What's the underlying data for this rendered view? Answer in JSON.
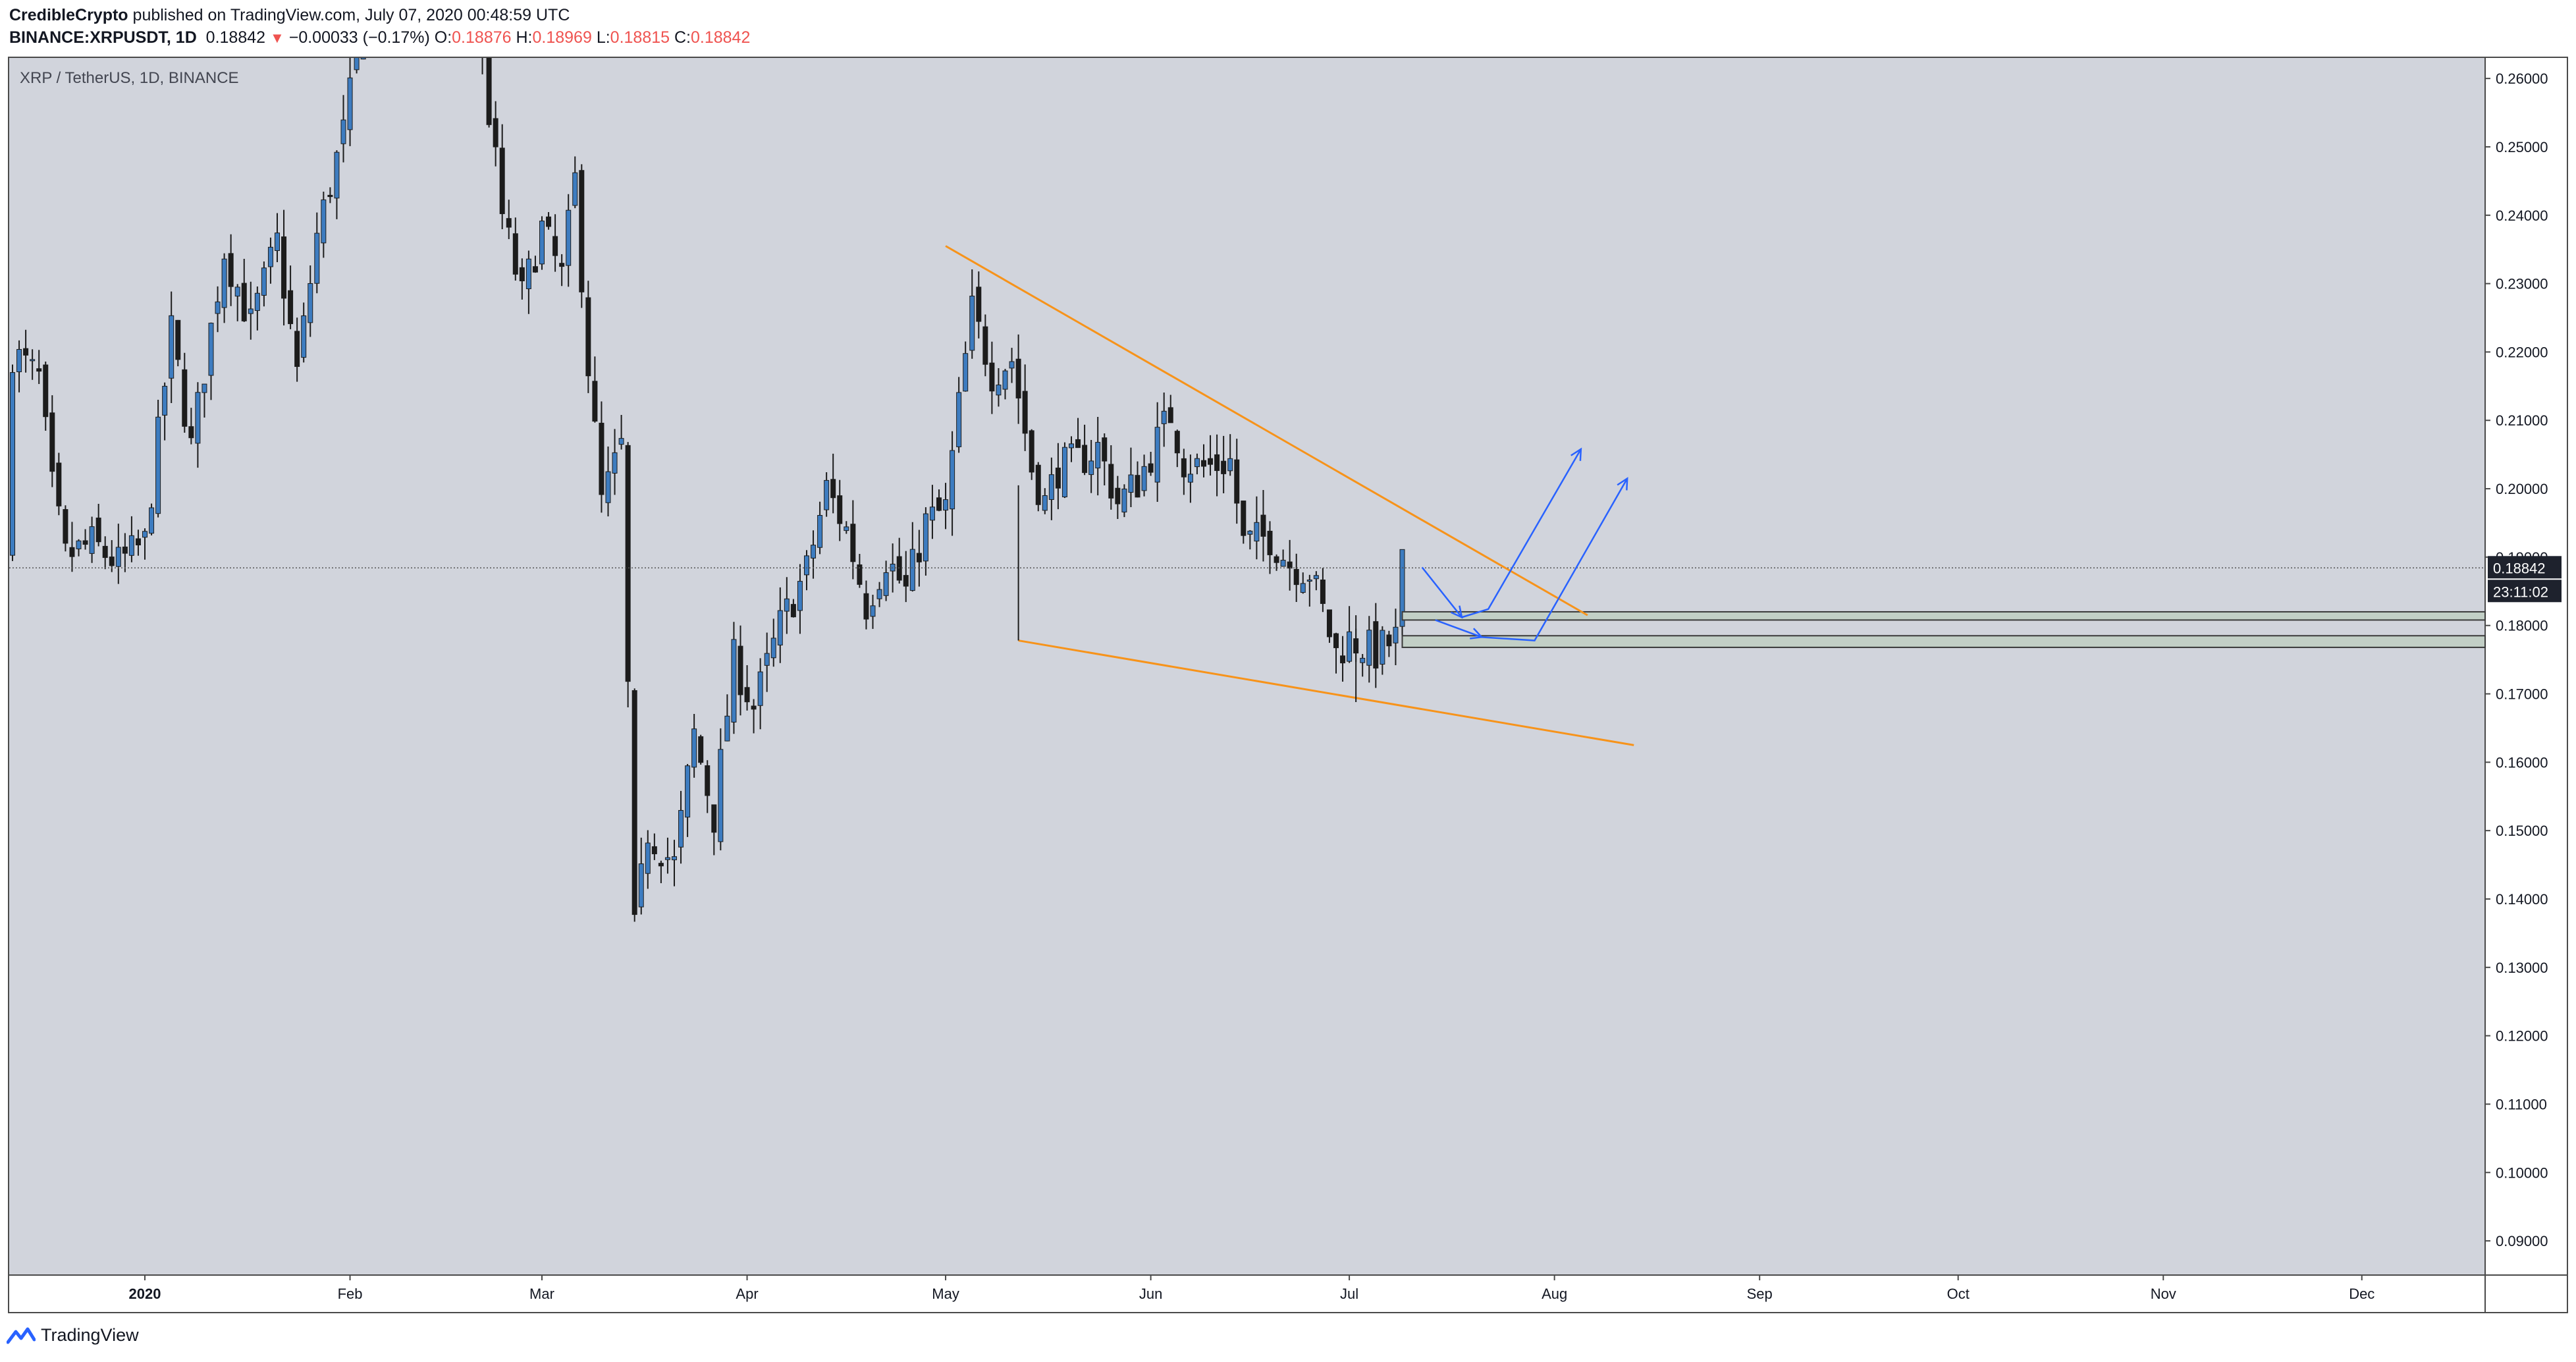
{
  "header": {
    "author": "CredibleCrypto",
    "published_text": " published on TradingView.com, July 07, 2020 00:48:59 UTC",
    "symbol": "BINANCE:XRPUSDT, 1D",
    "price": "0.18842",
    "change_arrow": "▼",
    "change": "−0.00033 (−0.17%)",
    "o_label": "O:",
    "o_value": "0.18876",
    "h_label": "H:",
    "h_value": "0.18969",
    "l_label": "L:",
    "l_value": "0.18815",
    "c_label": "C:",
    "c_value": "0.18842"
  },
  "footer": {
    "brand": "TradingView",
    "logo_icon": "tradingview-logo-icon"
  },
  "colors": {
    "background": "#d1d4dc",
    "candle_up": "#3d7cc0",
    "candle_down": "#1c1c1c",
    "wedge": "#f7931a",
    "arrows": "#2962ff",
    "zone_fill": "#c2cfc6",
    "price_label_bg": "#1e222d"
  },
  "chart_data": {
    "type": "candlestick",
    "title": "XRP / TetherUS, 1D, BINANCE",
    "ylim": [
      0.085,
      0.263
    ],
    "y_ticks": [
      "0.26000",
      "0.25000",
      "0.24000",
      "0.23000",
      "0.22000",
      "0.21000",
      "0.20000",
      "0.19000",
      "0.18000",
      "0.17000",
      "0.16000",
      "0.15000",
      "0.14000",
      "0.13000",
      "0.12000",
      "0.11000",
      "0.10000",
      "0.09000"
    ],
    "x_labels": [
      {
        "day": 0,
        "label": "2020"
      },
      {
        "day": 31,
        "label": "Feb"
      },
      {
        "day": 60,
        "label": "Mar"
      },
      {
        "day": 91,
        "label": "Apr"
      },
      {
        "day": 121,
        "label": "May"
      },
      {
        "day": 152,
        "label": "Jun"
      },
      {
        "day": 182,
        "label": "Jul"
      },
      {
        "day": 213,
        "label": "Aug"
      },
      {
        "day": 244,
        "label": "Sep"
      },
      {
        "day": 274,
        "label": "Oct"
      },
      {
        "day": 305,
        "label": "Nov"
      },
      {
        "day": 335,
        "label": "Dec"
      }
    ],
    "last_price": "0.18842",
    "countdown": "23:11:02",
    "anchors": [
      {
        "day": -20,
        "close": 0.22
      },
      {
        "day": -16,
        "close": 0.216
      },
      {
        "day": -14,
        "close": 0.2
      },
      {
        "day": -12,
        "close": 0.19
      },
      {
        "day": -8,
        "close": 0.192
      },
      {
        "day": -4,
        "close": 0.189
      },
      {
        "day": 0,
        "close": 0.192
      },
      {
        "day": 4,
        "close": 0.223
      },
      {
        "day": 7,
        "close": 0.206
      },
      {
        "day": 12,
        "close": 0.235
      },
      {
        "day": 16,
        "close": 0.224
      },
      {
        "day": 20,
        "close": 0.236
      },
      {
        "day": 23,
        "close": 0.217
      },
      {
        "day": 26,
        "close": 0.237
      },
      {
        "day": 30,
        "close": 0.252
      },
      {
        "day": 33,
        "close": 0.268
      },
      {
        "day": 37,
        "close": 0.28
      },
      {
        "day": 43,
        "close": 0.29
      },
      {
        "day": 50,
        "close": 0.27
      },
      {
        "day": 54,
        "close": 0.24
      },
      {
        "day": 57,
        "close": 0.228
      },
      {
        "day": 60,
        "close": 0.238
      },
      {
        "day": 63,
        "close": 0.231
      },
      {
        "day": 65,
        "close": 0.245
      },
      {
        "day": 67,
        "close": 0.218
      },
      {
        "day": 69,
        "close": 0.198
      },
      {
        "day": 72,
        "close": 0.206
      },
      {
        "day": 74,
        "close": 0.135
      },
      {
        "day": 76,
        "close": 0.15
      },
      {
        "day": 80,
        "close": 0.145
      },
      {
        "day": 83,
        "close": 0.164
      },
      {
        "day": 86,
        "close": 0.152
      },
      {
        "day": 89,
        "close": 0.175
      },
      {
        "day": 92,
        "close": 0.168
      },
      {
        "day": 96,
        "close": 0.18
      },
      {
        "day": 100,
        "close": 0.188
      },
      {
        "day": 103,
        "close": 0.2
      },
      {
        "day": 106,
        "close": 0.194
      },
      {
        "day": 109,
        "close": 0.183
      },
      {
        "day": 112,
        "close": 0.19
      },
      {
        "day": 115,
        "close": 0.185
      },
      {
        "day": 118,
        "close": 0.195
      },
      {
        "day": 121,
        "close": 0.197
      },
      {
        "day": 123,
        "close": 0.212
      },
      {
        "day": 125,
        "close": 0.226
      },
      {
        "day": 128,
        "close": 0.217
      },
      {
        "day": 131,
        "close": 0.219
      },
      {
        "day": 134,
        "close": 0.203
      },
      {
        "day": 136,
        "close": 0.198
      },
      {
        "day": 138,
        "close": 0.203
      },
      {
        "day": 141,
        "close": 0.204
      },
      {
        "day": 144,
        "close": 0.206
      },
      {
        "day": 147,
        "close": 0.198
      },
      {
        "day": 150,
        "close": 0.201
      },
      {
        "day": 153,
        "close": 0.207
      },
      {
        "day": 155,
        "close": 0.211
      },
      {
        "day": 157,
        "close": 0.204
      },
      {
        "day": 160,
        "close": 0.203
      },
      {
        "day": 164,
        "close": 0.204
      },
      {
        "day": 166,
        "close": 0.192
      },
      {
        "day": 170,
        "close": 0.193
      },
      {
        "day": 173,
        "close": 0.189
      },
      {
        "day": 176,
        "close": 0.188
      },
      {
        "day": 178,
        "close": 0.182
      },
      {
        "day": 180,
        "close": 0.176
      },
      {
        "day": 182,
        "close": 0.178
      },
      {
        "day": 186,
        "close": 0.176
      },
      {
        "day": 189,
        "close": 0.178
      },
      {
        "day": 190,
        "close": 0.189
      }
    ],
    "wedge_lines": [
      {
        "from": {
          "day": 121,
          "price": 0.2355
        },
        "to": {
          "day": 218,
          "price": 0.1815
        }
      },
      {
        "from": {
          "day": 132,
          "price": 0.1778
        },
        "to": {
          "day": 225,
          "price": 0.1625
        }
      }
    ],
    "wedge_ticks": [
      {
        "day": 132,
        "from": 0.1778,
        "to": 0.2005
      },
      {
        "day": 183,
        "from": 0.1688,
        "to": 0.1815
      }
    ],
    "zones": [
      {
        "top": 0.182,
        "bottom": 0.1808
      },
      {
        "top": 0.1785,
        "bottom": 0.1768
      }
    ],
    "arrow_paths": [
      [
        {
          "day": 193,
          "price": 0.1885
        },
        {
          "day": 199,
          "price": 0.1812
        },
        {
          "day": 203,
          "price": 0.1824
        },
        {
          "day": 217,
          "price": 0.2058
        }
      ],
      [
        {
          "day": 195,
          "price": 0.1808
        },
        {
          "day": 202,
          "price": 0.1783
        },
        {
          "day": 210,
          "price": 0.1778
        },
        {
          "day": 224,
          "price": 0.2015
        }
      ]
    ]
  }
}
